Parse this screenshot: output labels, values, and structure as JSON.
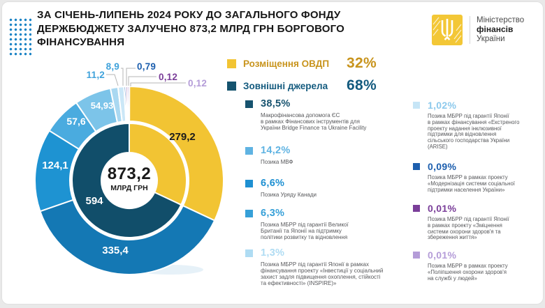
{
  "header": {
    "title": "ЗА СІЧЕНЬ-ЛИПЕНЬ 2024 РОКУ ДО ЗАГАЛЬНОГО ФОНДУ\nДЕРЖБЮДЖЕТУ ЗАЛУЧЕНО 873,2 МЛРД ГРН БОРГОВОГО\nФІНАНСУВАННЯ",
    "logo": {
      "org_line1": "Міністерство",
      "org_line2": "фінансів",
      "org_line3": "України",
      "mark_color": "#F3C736"
    }
  },
  "legend": {
    "items": [
      {
        "label": "Розміщення ОВДП",
        "pct": "32%",
        "text_color": "#C8941D",
        "swatch_color": "#F2C433"
      },
      {
        "label": "Зовнішні джерела",
        "pct": "68%",
        "text_color": "#135A7E",
        "swatch_color": "#15536E"
      }
    ]
  },
  "chart_data": {
    "type": "donut",
    "center": {
      "value": "873,2",
      "unit": "МЛРД ГРН"
    },
    "inner_ring": [
      {
        "label": "Розміщення ОВДП",
        "value": "279,2",
        "pct": 32,
        "color": "#F2C433"
      },
      {
        "label": "Зовнішні джерела",
        "value": "594",
        "pct": 68,
        "color": "#114E6A"
      }
    ],
    "outer_ring": [
      {
        "label": "Розміщення ОВДП",
        "value": "279,2",
        "pct": 32,
        "color": "#F2C433"
      },
      {
        "label": "Макрофінансова допомога ЄС (Bridge Finance та Ukraine Facility)",
        "value": "335,4",
        "pct": 38.5,
        "color": "#1478B4"
      },
      {
        "label": "Позика МВФ",
        "value": "124,1",
        "pct": 14.2,
        "color": "#1E93D2"
      },
      {
        "label": "Позика Уряду Канади",
        "value": "57,6",
        "pct": 6.6,
        "color": "#4AABDF"
      },
      {
        "label": "Позика МБРР під гарантії Великої Британії та Японії",
        "value": "54,93",
        "pct": 6.3,
        "color": "#7CC4E9"
      },
      {
        "label": "Позика МБРР під гарантії Японії (INSPIRE)",
        "value": "11,2",
        "pct": 1.3,
        "color": "#A9D8F1"
      },
      {
        "label": "Позика МБРР під гарантії Японії (ARISE)",
        "value": "8,9",
        "pct": 1.02,
        "color": "#CBE7F7"
      },
      {
        "label": "Позика МБРР «Модернізація системи соціальної підтримки населення України»",
        "value": "0,79",
        "pct": 0.09,
        "color": "#1D5FAE"
      },
      {
        "label": "Позика МБРР під гарантії Японії «Зміцнення системи охорони здоров'я та збереження життя»",
        "value": "0,12",
        "pct": 0.01,
        "color": "#7A3E99"
      },
      {
        "label": "Позика МБРР «Поліпшення охорони здоров'я на службі у людей»",
        "value": "0,12",
        "pct": 0.01,
        "color": "#B49CD8"
      }
    ],
    "callouts": [
      {
        "value": "11,2",
        "color": "#3FA2DB"
      },
      {
        "value": "8,9",
        "color": "#3FA2DB"
      },
      {
        "value": "0,79",
        "color": "#1D5FAE"
      },
      {
        "value": "0,12",
        "color": "#7A3E99"
      },
      {
        "value": "0,12",
        "color": "#B49CD8"
      }
    ]
  },
  "breakdown": {
    "col1": [
      {
        "pct": "38,5%",
        "color": "#17536F",
        "desc": "Макрофінансова допомога ЄС\nв рамках Фінансових інструментів для\nУкраїни Bridge Finance та Ukraine Facility"
      },
      {
        "pct": "14,2%",
        "color": "#5FB3E2",
        "desc": "Позика МВФ"
      },
      {
        "pct": "6,6%",
        "color": "#1E90D2",
        "desc": "Позика Уряду Канади"
      },
      {
        "pct": "6,3%",
        "color": "#36A0D8",
        "desc": "Позика МБРР під гарантії Великої\nБританії та Японії на підтримку\nполітики розвитку та відновлення"
      },
      {
        "pct": "1,3%",
        "color": "#AFDCF3",
        "desc": "Позика МБРР під гарантії Японії в рамках\nфінансування проекту «Інвестиції у соціальний\nзахист задля підвищення охоплення, стійкості\nта ефективності» (INSPIRE)»"
      }
    ],
    "col2": [
      {
        "pct": "1,02%",
        "color": "#8CC9EC",
        "marker": "#C6E5F6",
        "desc": "Позика МБРР під гарантії Японії\nв рамках фінансування «Екстреного\nпроекту надання інклюзивної\nпідтримки для відновлення\nсільського господарства України\n(ARISE)"
      },
      {
        "pct": "0,09%",
        "color": "#1D5FAE",
        "desc": "Позика МБРР в рамках проекту\n«Модернізація системи соціальної\nпідтримки населення України»"
      },
      {
        "pct": "0,01%",
        "color": "#7A3E99",
        "desc": "Позика МБРР під гарантії Японії\nв рамках проекту «Зміцнення\nсистеми охорони здоров'я та\nзбереження життя»"
      },
      {
        "pct": "0,01%",
        "color": "#B49CD8",
        "desc": "Позика МБРР в рамках проекту\n«Поліпшення охорони здоров'я\nна службі у людей»"
      }
    ]
  }
}
